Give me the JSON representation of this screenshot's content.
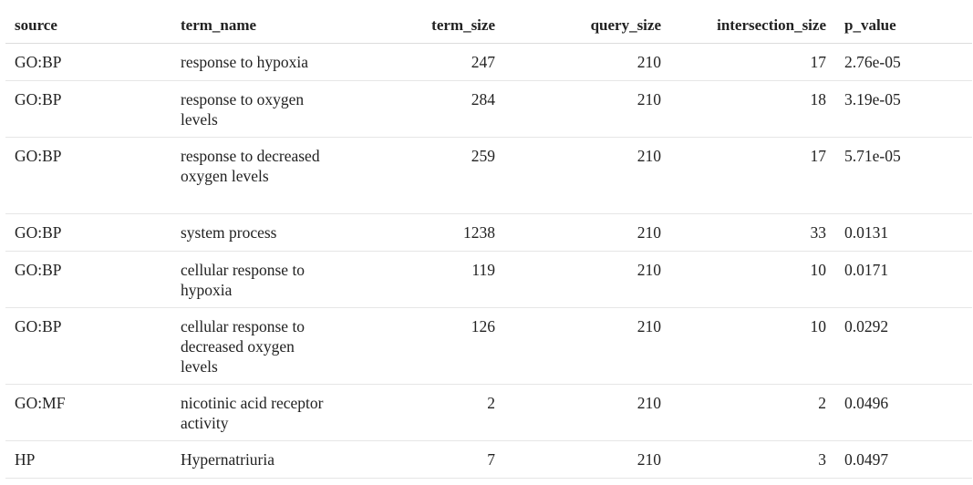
{
  "columns": {
    "source": "source",
    "term_name": "term_name",
    "term_size": "term_size",
    "query_size": "query_size",
    "intersection_size": "intersection_size",
    "p_value": "p_value"
  },
  "rows": [
    {
      "source": "GO:BP",
      "term_name": "response to hypoxia",
      "term_size": "247",
      "query_size": "210",
      "intersection_size": "17",
      "p_value": "2.76e-05"
    },
    {
      "source": "GO:BP",
      "term_name": "response to oxygen levels",
      "term_size": "284",
      "query_size": "210",
      "intersection_size": "18",
      "p_value": "3.19e-05"
    },
    {
      "source": "GO:BP",
      "term_name": "response to decreased oxygen levels",
      "term_size": "259",
      "query_size": "210",
      "intersection_size": "17",
      "p_value": "5.71e-05"
    },
    {
      "source": "GO:BP",
      "term_name": "system process",
      "term_size": "1238",
      "query_size": "210",
      "intersection_size": "33",
      "p_value": "0.0131"
    },
    {
      "source": "GO:BP",
      "term_name": "cellular response to hypoxia",
      "term_size": "119",
      "query_size": "210",
      "intersection_size": "10",
      "p_value": "0.0171"
    },
    {
      "source": "GO:BP",
      "term_name": "cellular response to decreased oxygen levels",
      "term_size": "126",
      "query_size": "210",
      "intersection_size": "10",
      "p_value": "0.0292"
    },
    {
      "source": "GO:MF",
      "term_name": "nicotinic acid receptor activity",
      "term_size": "2",
      "query_size": "210",
      "intersection_size": "2",
      "p_value": "0.0496"
    },
    {
      "source": "HP",
      "term_name": "Hypernatriuria",
      "term_size": "7",
      "query_size": "210",
      "intersection_size": "3",
      "p_value": "0.0497"
    }
  ]
}
